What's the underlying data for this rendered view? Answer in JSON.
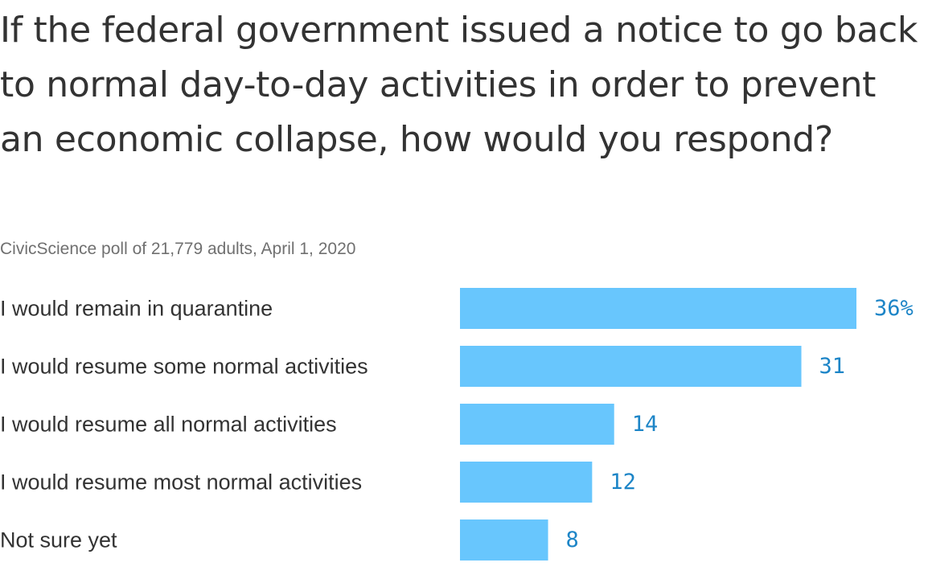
{
  "chart_data": {
    "type": "bar",
    "orientation": "horizontal",
    "title": "If the federal government issued a notice to go back to normal day-to-day activities in order to prevent an economic collapse, how would you respond?",
    "subtitle": "CivicScience poll of 21,779 adults, April 1, 2020",
    "categories": [
      "I would remain in quarantine",
      "I would resume some normal activities",
      "I would resume all normal activities",
      "I would resume most normal activities",
      "Not sure yet"
    ],
    "values": [
      36,
      31,
      14,
      12,
      8
    ],
    "value_labels": [
      "36%",
      "31",
      "14",
      "12",
      "8"
    ],
    "xlim": [
      0,
      36
    ],
    "grid": false,
    "legend": "none",
    "colors": {
      "bar": "#68c6fd",
      "value_label": "#1d85c7",
      "text": "#333333",
      "subtitle": "#707070"
    }
  }
}
